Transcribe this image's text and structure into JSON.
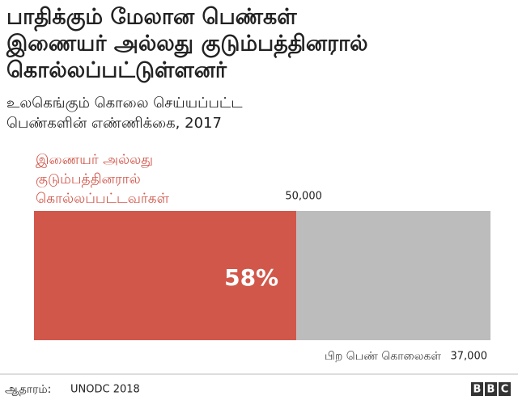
{
  "chart_data": {
    "type": "stacked-bar",
    "title": [
      "பாதிக்கும் மேலான பெண்கள்",
      "இணையர் அல்லது குடும்பத்தினரால்",
      "கொல்லப்பட்டுள்ளனர்"
    ],
    "subtitle": [
      "உலகெங்கும்  கொலை செய்யப்பட்ட",
      "பெண்களின் எண்ணிக்கை, 2017"
    ],
    "xlim": [
      0,
      87000
    ],
    "series": [
      {
        "name": "இணையர் அல்லது குடும்பத்தினரால் கொல்லப்பட்டவர்கள்",
        "color": "#d1574b",
        "values": [
          50000
        ],
        "value_labels": [
          "50,000"
        ],
        "shares": [
          58
        ],
        "share_labels": [
          "58%"
        ]
      },
      {
        "name": "பிற பெண் கொலைகள்",
        "color": "#bcbcbc",
        "values": [
          37000
        ],
        "value_labels": [
          "37,000"
        ]
      }
    ],
    "source_label": "ஆதாரம்:",
    "source": "UNODC 2018",
    "logo": "BBC"
  }
}
